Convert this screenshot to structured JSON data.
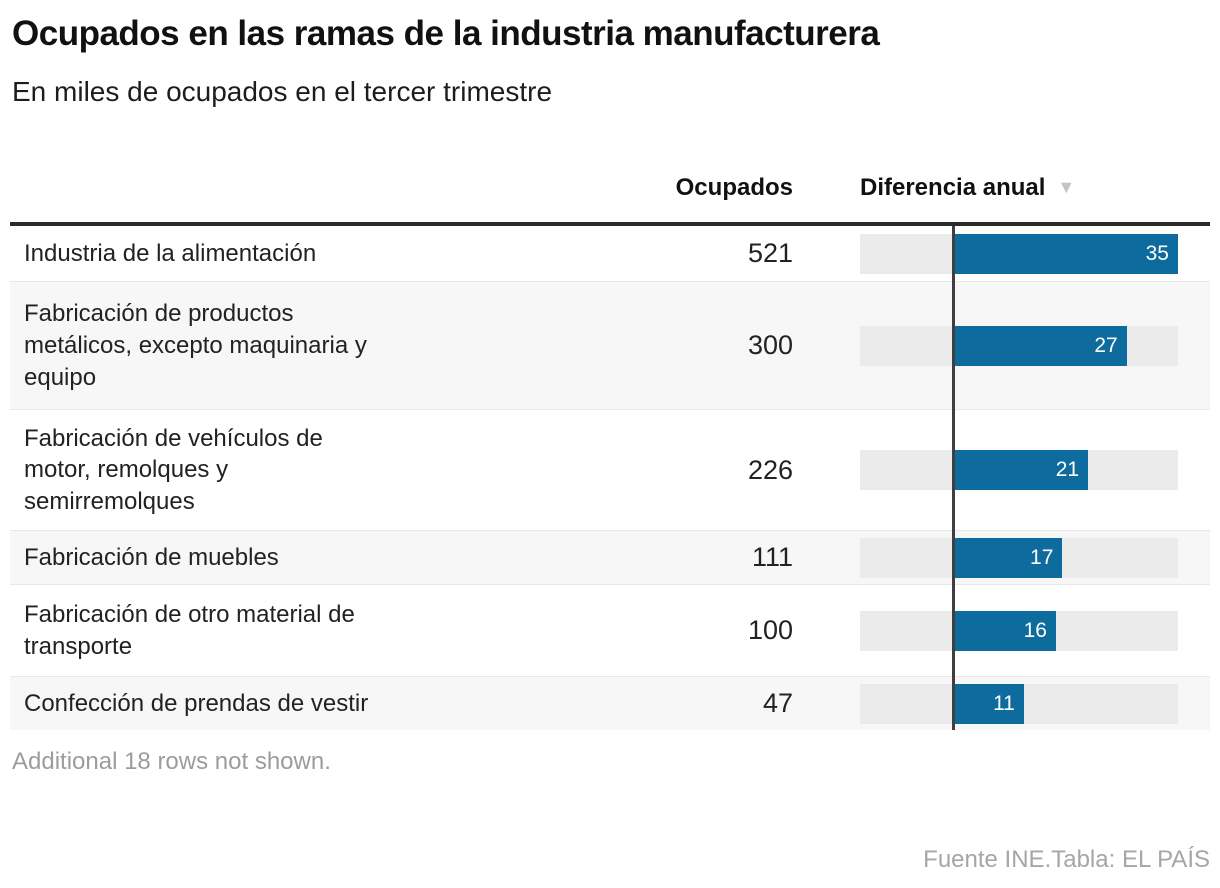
{
  "header": {
    "title": "Ocupados en las ramas de la industria manufacturera",
    "subtitle": "En miles de ocupados en el tercer trimestre"
  },
  "table": {
    "columns": {
      "ocupados": "Ocupados",
      "diferencia": "Diferencia anual",
      "sort_icon": "▼"
    },
    "rows": [
      {
        "label": "Industria de la alimentación",
        "ocupados": "521",
        "diferencia": 35
      },
      {
        "label": "Fabricación de productos\nmetálicos, excepto maquinaria y\nequipo",
        "ocupados": "300",
        "diferencia": 27
      },
      {
        "label": "Fabricación de vehículos de\nmotor, remolques y\nsemirremolques",
        "ocupados": "226",
        "diferencia": 21
      },
      {
        "label": "Fabricación de muebles",
        "ocupados": "111",
        "diferencia": 17
      },
      {
        "label": "Fabricación de otro material de\ntransporte",
        "ocupados": "100",
        "diferencia": 16
      },
      {
        "label": "Confección de prendas de vestir",
        "ocupados": "47",
        "diferencia": 11
      }
    ],
    "footnote": "Additional 18 rows not shown."
  },
  "footer": {
    "source": "Fuente INE.Tabla: EL PAÍS"
  },
  "colors": {
    "bar": "#0e6b9d",
    "bar_track": "#ebebeb",
    "zebra_row": "#f7f7f7",
    "baseline": "#3f3f3f",
    "header_border": "#2b2b2b",
    "muted_text": "#9c9c9c",
    "sort_icon": "#c3c3c3"
  },
  "chart_data": {
    "type": "bar",
    "orientation": "horizontal",
    "title": "Ocupados en las ramas de la industria manufacturera",
    "subtitle": "En miles de ocupados en el tercer trimestre",
    "categories": [
      "Industria de la alimentación",
      "Fabricación de productos metálicos, excepto maquinaria y equipo",
      "Fabricación de vehículos de motor, remolques y semirremolques",
      "Fabricación de muebles",
      "Fabricación de otro material de transporte",
      "Confección de prendas de vestir"
    ],
    "series": [
      {
        "name": "Ocupados",
        "values": [
          521,
          300,
          226,
          111,
          100,
          47
        ]
      },
      {
        "name": "Diferencia anual",
        "values": [
          35,
          27,
          21,
          17,
          16,
          11
        ]
      }
    ],
    "xlim": [
      -14.5,
      35
    ],
    "grid": false,
    "legend": false,
    "sort": "Diferencia anual, descending",
    "note": "Additional 18 rows not shown.",
    "source": "Fuente INE.Tabla: EL PAÍS"
  }
}
